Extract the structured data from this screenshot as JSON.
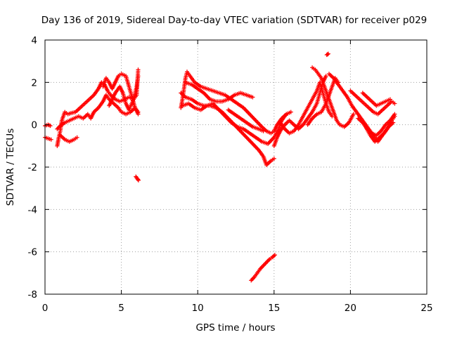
{
  "chart_data": {
    "type": "scatter",
    "title": "Day 136 of 2019, Sidereal Day-to-day VTEC variation (SDTVAR) for receiver p029",
    "xlabel": "GPS time / hours",
    "ylabel": "SDTVAR / TECUs",
    "xlim": [
      0,
      25
    ],
    "ylim": [
      -8,
      4
    ],
    "xticks": [
      0,
      5,
      10,
      15,
      20,
      25
    ],
    "yticks": [
      -8,
      -6,
      -4,
      -2,
      0,
      2,
      4
    ],
    "xtick_labels": [
      "0",
      "5",
      "10",
      "15",
      "20",
      "25"
    ],
    "ytick_labels": [
      "-8",
      "-6",
      "-4",
      "-2",
      "0",
      "2",
      "4"
    ],
    "grid": true,
    "marker": "+",
    "series": [
      {
        "name": "SDTVAR",
        "color": "#ff0000",
        "segments": [
          [
            [
              0.0,
              -0.05
            ],
            [
              0.2,
              0.0
            ],
            [
              0.35,
              -0.05
            ]
          ],
          [
            [
              0.0,
              -0.6
            ],
            [
              0.2,
              -0.65
            ],
            [
              0.4,
              -0.7
            ]
          ],
          [
            [
              0.8,
              -1.0
            ],
            [
              0.9,
              -0.6
            ],
            [
              1.0,
              -0.3
            ],
            [
              1.1,
              0.2
            ],
            [
              1.2,
              0.4
            ],
            [
              1.3,
              0.6
            ],
            [
              1.5,
              0.5
            ],
            [
              1.7,
              0.55
            ],
            [
              2.0,
              0.6
            ],
            [
              2.3,
              0.8
            ],
            [
              2.6,
              1.0
            ],
            [
              2.9,
              1.2
            ],
            [
              3.2,
              1.4
            ],
            [
              3.5,
              1.7
            ],
            [
              3.7,
              2.0
            ],
            [
              3.9,
              1.9
            ],
            [
              4.1,
              1.6
            ],
            [
              4.3,
              1.4
            ],
            [
              4.6,
              1.2
            ],
            [
              4.9,
              1.1
            ],
            [
              5.2,
              1.2
            ],
            [
              5.5,
              1.3
            ],
            [
              5.8,
              1.2
            ],
            [
              6.0,
              1.4
            ],
            [
              6.1,
              2.6
            ]
          ],
          [
            [
              0.8,
              -0.2
            ],
            [
              1.0,
              -0.05
            ],
            [
              1.3,
              0.1
            ],
            [
              1.6,
              0.2
            ],
            [
              1.9,
              0.3
            ],
            [
              2.2,
              0.4
            ],
            [
              2.5,
              0.3
            ],
            [
              2.8,
              0.5
            ],
            [
              3.0,
              0.3
            ],
            [
              3.2,
              0.6
            ],
            [
              3.5,
              0.8
            ],
            [
              3.8,
              1.1
            ],
            [
              4.0,
              1.4
            ],
            [
              4.2,
              1.2
            ],
            [
              4.5,
              1.0
            ],
            [
              4.8,
              0.8
            ],
            [
              5.0,
              0.6
            ],
            [
              5.3,
              0.5
            ],
            [
              5.6,
              0.6
            ],
            [
              5.9,
              0.8
            ],
            [
              6.1,
              0.6
            ]
          ],
          [
            [
              1.0,
              -0.5
            ],
            [
              1.3,
              -0.7
            ],
            [
              1.6,
              -0.8
            ],
            [
              1.9,
              -0.7
            ],
            [
              2.1,
              -0.6
            ]
          ],
          [
            [
              3.8,
              1.8
            ],
            [
              4.0,
              2.2
            ],
            [
              4.2,
              2.0
            ],
            [
              4.4,
              1.7
            ],
            [
              4.6,
              2.0
            ],
            [
              4.8,
              2.3
            ],
            [
              5.0,
              2.4
            ],
            [
              5.3,
              2.3
            ],
            [
              5.5,
              1.8
            ],
            [
              5.7,
              1.3
            ],
            [
              5.9,
              0.8
            ],
            [
              6.1,
              0.5
            ]
          ],
          [
            [
              4.2,
              0.9
            ],
            [
              4.4,
              1.2
            ],
            [
              4.6,
              1.5
            ],
            [
              4.9,
              1.8
            ],
            [
              5.1,
              1.5
            ],
            [
              5.3,
              1.0
            ],
            [
              5.5,
              0.7
            ],
            [
              5.8,
              1.2
            ],
            [
              6.0,
              1.8
            ],
            [
              6.1,
              2.3
            ]
          ],
          [
            [
              5.95,
              -2.45
            ],
            [
              6.05,
              -2.55
            ],
            [
              6.12,
              -2.62
            ]
          ],
          [
            [
              8.9,
              0.8
            ],
            [
              9.0,
              1.2
            ],
            [
              9.1,
              1.7
            ],
            [
              9.2,
              2.2
            ],
            [
              9.3,
              2.5
            ],
            [
              9.5,
              2.3
            ],
            [
              9.8,
              2.0
            ],
            [
              10.2,
              1.8
            ],
            [
              10.6,
              1.7
            ],
            [
              11.0,
              1.6
            ],
            [
              11.4,
              1.5
            ],
            [
              11.8,
              1.4
            ],
            [
              12.2,
              1.2
            ],
            [
              12.6,
              1.0
            ],
            [
              13.0,
              0.8
            ],
            [
              13.4,
              0.5
            ],
            [
              13.8,
              0.2
            ],
            [
              14.2,
              -0.1
            ],
            [
              14.5,
              -0.3
            ],
            [
              14.8,
              -0.4
            ],
            [
              15.0,
              -0.3
            ],
            [
              15.2,
              0.0
            ],
            [
              15.5,
              0.3
            ],
            [
              15.8,
              0.5
            ],
            [
              16.1,
              0.6
            ]
          ],
          [
            [
              8.9,
              1.5
            ],
            [
              9.2,
              1.3
            ],
            [
              9.6,
              1.2
            ],
            [
              10.0,
              1.0
            ],
            [
              10.4,
              0.9
            ],
            [
              10.8,
              0.9
            ],
            [
              11.2,
              0.8
            ],
            [
              11.6,
              0.6
            ],
            [
              12.0,
              0.3
            ],
            [
              12.4,
              0.0
            ],
            [
              12.8,
              -0.3
            ],
            [
              13.2,
              -0.6
            ],
            [
              13.6,
              -0.9
            ],
            [
              14.0,
              -1.2
            ],
            [
              14.3,
              -1.5
            ],
            [
              14.5,
              -1.9
            ],
            [
              14.8,
              -1.7
            ],
            [
              15.0,
              -1.6
            ]
          ],
          [
            [
              9.2,
              2.0
            ],
            [
              9.6,
              1.9
            ],
            [
              10.0,
              1.7
            ],
            [
              10.4,
              1.5
            ],
            [
              10.8,
              1.2
            ],
            [
              11.2,
              1.1
            ],
            [
              11.6,
              1.1
            ],
            [
              12.0,
              1.2
            ],
            [
              12.4,
              1.4
            ],
            [
              12.8,
              1.5
            ],
            [
              13.2,
              1.4
            ],
            [
              13.6,
              1.3
            ]
          ],
          [
            [
              9.0,
              0.9
            ],
            [
              9.4,
              1.0
            ],
            [
              9.8,
              0.8
            ],
            [
              10.2,
              0.7
            ],
            [
              10.6,
              0.9
            ],
            [
              11.0,
              1.0
            ],
            [
              11.4,
              0.7
            ],
            [
              11.8,
              0.4
            ],
            [
              12.2,
              0.1
            ],
            [
              12.6,
              -0.1
            ],
            [
              13.0,
              -0.2
            ],
            [
              13.4,
              -0.4
            ],
            [
              13.8,
              -0.6
            ],
            [
              14.2,
              -0.8
            ],
            [
              14.6,
              -0.9
            ],
            [
              15.0,
              -0.6
            ],
            [
              15.3,
              -0.2
            ],
            [
              15.5,
              0.2
            ],
            [
              15.8,
              0.5
            ]
          ],
          [
            [
              12.0,
              0.7
            ],
            [
              12.4,
              0.5
            ],
            [
              12.8,
              0.3
            ],
            [
              13.2,
              0.1
            ],
            [
              13.6,
              -0.1
            ],
            [
              14.0,
              -0.2
            ],
            [
              14.3,
              -0.3
            ]
          ],
          [
            [
              13.5,
              -7.35
            ],
            [
              13.7,
              -7.2
            ],
            [
              13.9,
              -7.0
            ],
            [
              14.1,
              -6.8
            ],
            [
              14.3,
              -6.65
            ],
            [
              14.5,
              -6.5
            ],
            [
              14.7,
              -6.35
            ],
            [
              14.9,
              -6.25
            ],
            [
              15.05,
              -6.15
            ]
          ],
          [
            [
              15.0,
              -1.0
            ],
            [
              15.2,
              -0.6
            ],
            [
              15.4,
              -0.3
            ],
            [
              15.7,
              0.0
            ],
            [
              16.0,
              0.2
            ],
            [
              16.3,
              0.0
            ],
            [
              16.6,
              -0.2
            ],
            [
              16.9,
              0.0
            ],
            [
              17.2,
              0.3
            ],
            [
              17.5,
              0.6
            ],
            [
              17.8,
              1.0
            ],
            [
              18.0,
              1.5
            ],
            [
              18.2,
              2.0
            ],
            [
              18.4,
              2.3
            ]
          ],
          [
            [
              15.4,
              0.1
            ],
            [
              15.7,
              -0.2
            ],
            [
              16.0,
              -0.4
            ],
            [
              16.3,
              -0.3
            ],
            [
              16.6,
              0.0
            ],
            [
              16.9,
              0.4
            ],
            [
              17.2,
              0.8
            ],
            [
              17.5,
              1.2
            ],
            [
              17.8,
              1.6
            ],
            [
              18.0,
              2.0
            ],
            [
              18.2,
              1.5
            ],
            [
              18.4,
              1.0
            ],
            [
              18.6,
              0.6
            ],
            [
              18.8,
              0.4
            ]
          ],
          [
            [
              17.2,
              0.0
            ],
            [
              17.5,
              0.3
            ],
            [
              17.8,
              0.5
            ],
            [
              18.1,
              0.6
            ],
            [
              18.4,
              1.0
            ],
            [
              18.7,
              1.6
            ],
            [
              19.0,
              2.2
            ],
            [
              19.2,
              2.0
            ]
          ],
          [
            [
              17.5,
              2.7
            ],
            [
              17.7,
              2.6
            ],
            [
              17.9,
              2.4
            ],
            [
              18.1,
              2.2
            ],
            [
              18.3,
              1.8
            ],
            [
              18.5,
              1.4
            ],
            [
              18.7,
              1.0
            ],
            [
              18.9,
              0.6
            ],
            [
              19.1,
              0.2
            ],
            [
              19.3,
              0.0
            ],
            [
              19.6,
              -0.1
            ],
            [
              19.9,
              0.1
            ],
            [
              20.2,
              0.5
            ]
          ],
          [
            [
              18.45,
              3.3
            ],
            [
              18.55,
              3.35
            ]
          ],
          [
            [
              18.6,
              2.4
            ],
            [
              18.9,
              2.2
            ],
            [
              19.2,
              1.9
            ],
            [
              19.5,
              1.6
            ],
            [
              19.8,
              1.3
            ],
            [
              20.1,
              0.9
            ],
            [
              20.4,
              0.6
            ],
            [
              20.7,
              0.3
            ],
            [
              21.0,
              0.0
            ],
            [
              21.3,
              -0.3
            ],
            [
              21.6,
              -0.6
            ],
            [
              21.8,
              -0.8
            ],
            [
              22.1,
              -0.5
            ],
            [
              22.4,
              -0.2
            ],
            [
              22.7,
              0.2
            ],
            [
              22.9,
              0.4
            ]
          ],
          [
            [
              20.0,
              1.6
            ],
            [
              20.3,
              1.4
            ],
            [
              20.6,
              1.2
            ],
            [
              20.9,
              1.0
            ],
            [
              21.2,
              0.8
            ],
            [
              21.5,
              0.6
            ],
            [
              21.8,
              0.5
            ],
            [
              22.1,
              0.7
            ],
            [
              22.4,
              0.9
            ],
            [
              22.7,
              1.1
            ],
            [
              22.9,
              1.0
            ]
          ],
          [
            [
              20.8,
              1.5
            ],
            [
              21.1,
              1.3
            ],
            [
              21.4,
              1.1
            ],
            [
              21.7,
              0.9
            ],
            [
              22.0,
              1.0
            ],
            [
              22.3,
              1.1
            ],
            [
              22.6,
              1.2
            ]
          ],
          [
            [
              20.5,
              0.3
            ],
            [
              20.8,
              0.1
            ],
            [
              21.1,
              -0.2
            ],
            [
              21.4,
              -0.4
            ],
            [
              21.7,
              -0.5
            ],
            [
              22.0,
              -0.3
            ],
            [
              22.3,
              0.0
            ],
            [
              22.6,
              0.2
            ],
            [
              22.9,
              0.5
            ]
          ],
          [
            [
              21.0,
              -0.1
            ],
            [
              21.3,
              -0.5
            ],
            [
              21.6,
              -0.8
            ],
            [
              21.9,
              -0.6
            ],
            [
              22.2,
              -0.4
            ],
            [
              22.5,
              -0.1
            ],
            [
              22.8,
              0.1
            ]
          ]
        ]
      }
    ]
  }
}
